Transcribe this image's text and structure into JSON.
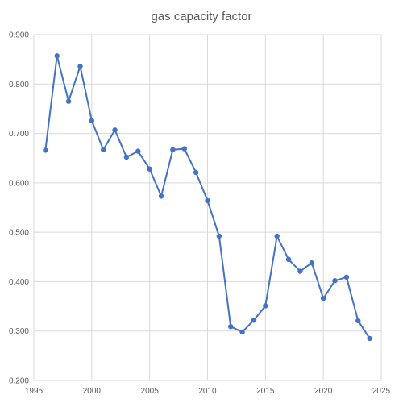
{
  "chart_data": {
    "type": "scatter",
    "title": "gas capacity factor",
    "xlabel": "",
    "ylabel": "",
    "xlim": [
      1995,
      2025
    ],
    "ylim": [
      0.2,
      0.9
    ],
    "grid": true,
    "legend": "none",
    "line_color": "#4472c4",
    "x_ticks": [
      1995,
      2000,
      2005,
      2010,
      2015,
      2020,
      2025
    ],
    "x_tick_labels": [
      "1995",
      "2000",
      "2005",
      "2010",
      "2015",
      "2020",
      "2025"
    ],
    "y_ticks": [
      0.2,
      0.3,
      0.4,
      0.5,
      0.6,
      0.7,
      0.8,
      0.9
    ],
    "y_tick_labels": [
      "0.200",
      "0.300",
      "0.400",
      "0.500",
      "0.600",
      "0.700",
      "0.800",
      "0.900"
    ],
    "series": [
      {
        "x": [
          1996,
          1997,
          1998,
          1999,
          2000,
          2001,
          2002,
          2003,
          2004,
          2005,
          2006,
          2007,
          2008,
          2009,
          2010,
          2011,
          2012,
          2013,
          2014,
          2015,
          2016,
          2017,
          2018,
          2019,
          2020,
          2021,
          2022,
          2023,
          2024
        ],
        "y": [
          0.666,
          0.857,
          0.765,
          0.836,
          0.726,
          0.667,
          0.707,
          0.652,
          0.664,
          0.628,
          0.573,
          0.667,
          0.669,
          0.621,
          0.564,
          0.492,
          0.309,
          0.298,
          0.322,
          0.351,
          0.492,
          0.445,
          0.421,
          0.438,
          0.366,
          0.402,
          0.409,
          0.321,
          0.285
        ]
      }
    ]
  }
}
